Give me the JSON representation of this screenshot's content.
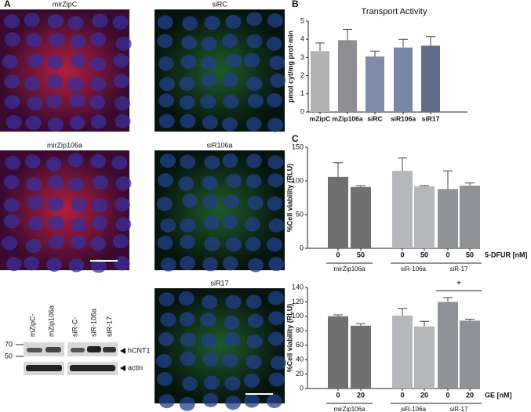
{
  "figure": {
    "panel_labels": [
      "A",
      "B",
      "C"
    ],
    "image_labels": [
      "mirZipC",
      "siRC",
      "mirZip106a",
      "siR106a",
      "siR17"
    ],
    "blot": {
      "lanes": [
        "mZipC-",
        "mZip106a",
        "siR-C-",
        "siR-106a",
        "siR-17"
      ],
      "markers": [
        "70",
        "50"
      ],
      "bands": [
        "hCNT1",
        "actin"
      ]
    }
  },
  "chart_data": [
    {
      "type": "bar",
      "title": "Transport Activity",
      "y_label": "pmol cyt/mg prot·min",
      "categories": [
        "mZipC",
        "mZip106a",
        "siRC",
        "siR106a",
        "siR17"
      ],
      "values": [
        3.35,
        3.95,
        3.05,
        3.55,
        3.65
      ],
      "errors": [
        0.45,
        0.6,
        0.3,
        0.45,
        0.5
      ],
      "colors": [
        "#b1b1b4",
        "#8f8f92",
        "#7d8ca6",
        "#7888a4",
        "#5f6d8a"
      ],
      "ylim": [
        0,
        5
      ],
      "yticks": [
        0,
        1,
        2,
        3,
        4,
        5
      ]
    },
    {
      "type": "bar",
      "y_label": "%Cell viability (RLU)",
      "x_label": "5-DFUR [nM]",
      "categories": [
        "0",
        "50",
        "0",
        "50",
        "0",
        "50"
      ],
      "groups": [
        "mirZip106a",
        "siR-106a",
        "siR-17"
      ],
      "values": [
        106,
        91,
        115,
        92,
        88,
        93
      ],
      "errors": [
        21,
        2,
        19,
        1,
        27,
        4
      ],
      "colors": [
        "#707070",
        "#707070",
        "#b5b7ba",
        "#b5b7ba",
        "#8f9297",
        "#8f9297"
      ],
      "ylim": [
        0,
        150
      ],
      "yticks": [
        0,
        50,
        100,
        150
      ]
    },
    {
      "type": "bar",
      "y_label": "%Cell viability (RLU)",
      "x_label": "GE [nM]",
      "annotation": "*",
      "categories": [
        "0",
        "20",
        "0",
        "20",
        "0",
        "20"
      ],
      "groups": [
        "mirZip106a",
        "siR-106a",
        "siR-17"
      ],
      "values": [
        100,
        87,
        101,
        86,
        120,
        94
      ],
      "errors": [
        2,
        3,
        10,
        7,
        6,
        2
      ],
      "colors": [
        "#707070",
        "#707070",
        "#b5b7ba",
        "#b5b7ba",
        "#8f9297",
        "#8f9297"
      ],
      "ylim": [
        0,
        140
      ],
      "yticks": [
        0,
        20,
        40,
        60,
        80,
        100,
        120,
        140
      ]
    }
  ]
}
